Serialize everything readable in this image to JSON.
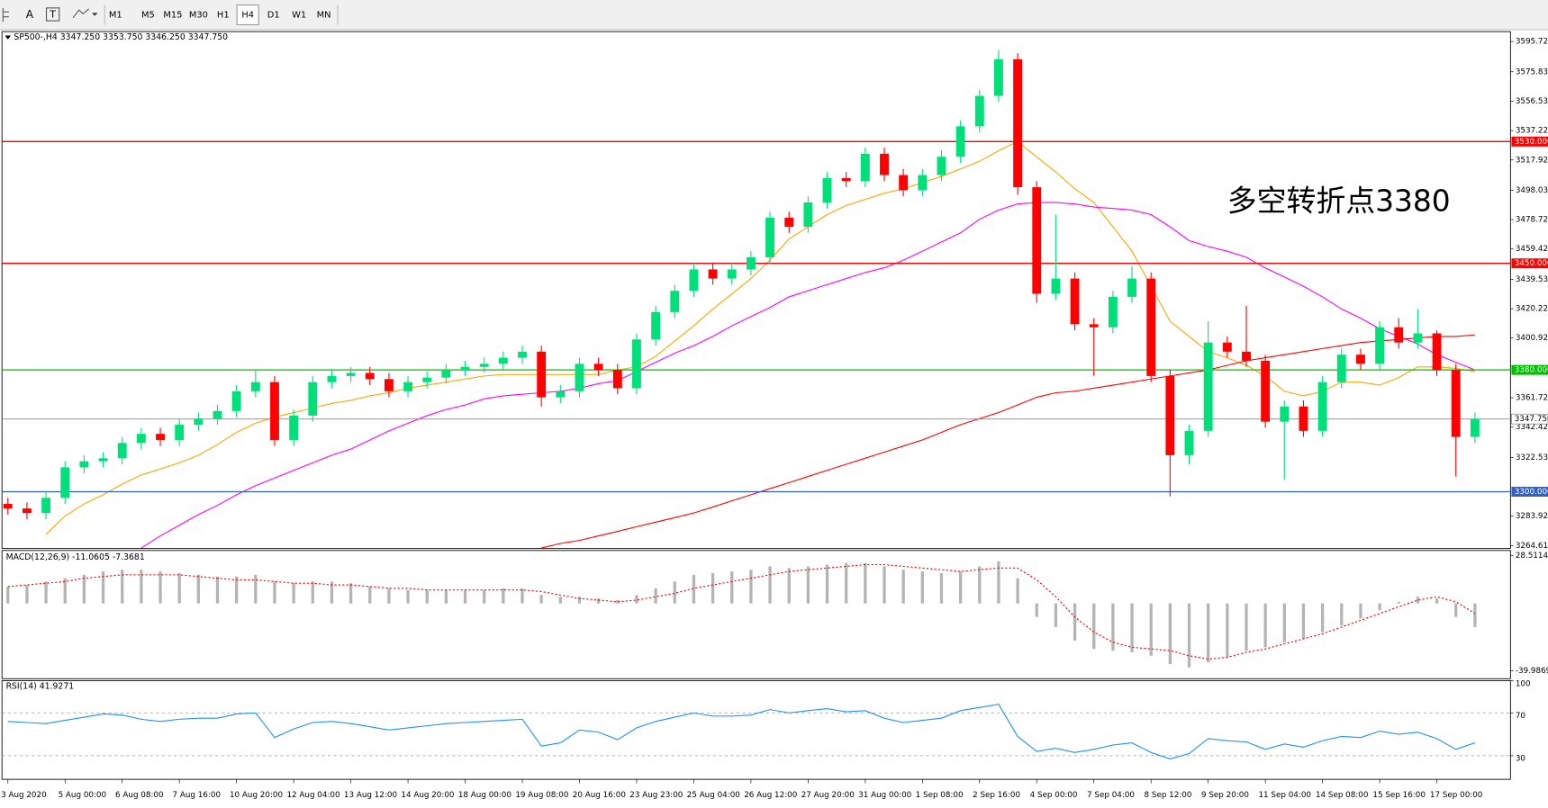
{
  "toolbar": {
    "tools": [
      "A"
    ],
    "timeframes": [
      "M1",
      "M5",
      "M15",
      "M30",
      "H1",
      "H4",
      "D1",
      "W1",
      "MN"
    ],
    "active_timeframe_index": 5
  },
  "chart_data": [
    {
      "type": "candlestick",
      "title": "SP500-,H4 3347.250 3353.750 3346.250 3347.750",
      "annotation": "多空转折点3380",
      "categories": [
        "3 Aug 2020",
        null,
        null,
        "5 Aug 00:00",
        null,
        null,
        "6 Aug 08:00",
        null,
        null,
        "7 Aug 16:00",
        null,
        null,
        "10 Aug 20:00",
        null,
        null,
        "12 Aug 04:00",
        null,
        null,
        "13 Aug 12:00",
        null,
        null,
        "14 Aug 20:00",
        null,
        null,
        "18 Aug 00:00",
        null,
        null,
        "19 Aug 08:00",
        null,
        null,
        "20 Aug 16:00",
        null,
        null,
        "23 Aug 23:00",
        null,
        null,
        "25 Aug 04:00",
        null,
        null,
        "26 Aug 12:00",
        null,
        null,
        "27 Aug 20:00",
        null,
        null,
        "31 Aug 00:00",
        null,
        null,
        "1 Sep 08:00",
        null,
        null,
        "2 Sep 16:00",
        null,
        null,
        "4 Sep 00:00",
        null,
        null,
        "7 Sep 04:00",
        null,
        null,
        "8 Sep 12:00",
        null,
        null,
        "9 Sep 20:00",
        null,
        null,
        "11 Sep 04:00",
        null,
        null,
        "14 Sep 08:00",
        null,
        null,
        "15 Sep 16:00",
        null,
        null,
        "17 Sep 00:00",
        null,
        null
      ],
      "open": [
        3292,
        3289,
        3286,
        3296,
        3316,
        3320,
        3322,
        3332,
        3338,
        3334,
        3344,
        3348,
        3353,
        3366,
        3372,
        3334,
        3350,
        3372,
        3376,
        3378,
        3374,
        3366,
        3372,
        3375,
        3380,
        3382,
        3384,
        3388,
        3392,
        3362,
        3366,
        3384,
        3380,
        3368,
        3400,
        3418,
        3432,
        3446,
        3440,
        3446,
        3454,
        3480,
        3474,
        3490,
        3506,
        3504,
        3522,
        3508,
        3498,
        3508,
        3520,
        3540,
        3560,
        3584,
        3500,
        3430,
        3440,
        3410,
        3408,
        3428,
        3440,
        3376,
        3324,
        3340,
        3398,
        3392,
        3386,
        3346,
        3356,
        3340,
        3372,
        3390,
        3384,
        3408,
        3398,
        3404,
        3380,
        3336
      ],
      "high": [
        3296,
        3293,
        3300,
        3320,
        3324,
        3326,
        3336,
        3342,
        3342,
        3348,
        3352,
        3357,
        3370,
        3380,
        3376,
        3354,
        3376,
        3380,
        3382,
        3382,
        3378,
        3376,
        3379,
        3384,
        3386,
        3388,
        3392,
        3396,
        3396,
        3370,
        3388,
        3388,
        3384,
        3404,
        3422,
        3436,
        3450,
        3450,
        3450,
        3458,
        3484,
        3484,
        3494,
        3510,
        3510,
        3526,
        3526,
        3512,
        3512,
        3524,
        3544,
        3564,
        3590,
        3588,
        3504,
        3482,
        3444,
        3414,
        3432,
        3448,
        3444,
        3380,
        3344,
        3412,
        3402,
        3422,
        3390,
        3360,
        3360,
        3376,
        3394,
        3394,
        3412,
        3414,
        3420,
        3406,
        3384,
        3352
      ],
      "low": [
        3285,
        3282,
        3282,
        3292,
        3312,
        3316,
        3318,
        3328,
        3330,
        3330,
        3340,
        3344,
        3349,
        3362,
        3330,
        3330,
        3346,
        3368,
        3372,
        3370,
        3362,
        3362,
        3368,
        3371,
        3376,
        3378,
        3380,
        3384,
        3356,
        3358,
        3362,
        3376,
        3364,
        3364,
        3396,
        3414,
        3428,
        3436,
        3436,
        3442,
        3450,
        3470,
        3470,
        3486,
        3500,
        3500,
        3504,
        3494,
        3494,
        3504,
        3516,
        3536,
        3556,
        3495,
        3424,
        3426,
        3406,
        3376,
        3404,
        3424,
        3372,
        3297,
        3318,
        3336,
        3388,
        3382,
        3342,
        3308,
        3336,
        3336,
        3368,
        3380,
        3380,
        3394,
        3394,
        3376,
        3310,
        3332
      ],
      "close": [
        3289,
        3286,
        3296,
        3316,
        3320,
        3322,
        3332,
        3338,
        3334,
        3344,
        3348,
        3353,
        3366,
        3372,
        3334,
        3350,
        3372,
        3376,
        3378,
        3374,
        3366,
        3372,
        3375,
        3380,
        3382,
        3384,
        3388,
        3392,
        3362,
        3366,
        3384,
        3380,
        3368,
        3400,
        3418,
        3432,
        3446,
        3440,
        3446,
        3454,
        3480,
        3474,
        3490,
        3506,
        3504,
        3522,
        3508,
        3498,
        3508,
        3520,
        3540,
        3560,
        3584,
        3500,
        3430,
        3440,
        3410,
        3408,
        3428,
        3440,
        3376,
        3324,
        3340,
        3398,
        3392,
        3386,
        3346,
        3356,
        3340,
        3372,
        3390,
        3384,
        3408,
        3398,
        3404,
        3380,
        3336,
        3347.75
      ],
      "up_color": "#00e07a",
      "down_color": "#ff0000",
      "lines": [
        {
          "color": "#ffa500",
          "values": [
            null,
            null,
            3272,
            3284,
            3292,
            3298,
            3305,
            3311,
            3315,
            3319,
            3324,
            3331,
            3339,
            3345,
            3349,
            3352,
            3355,
            3358,
            3360,
            3363,
            3365,
            3368,
            3370,
            3372,
            3374,
            3376,
            3377,
            3377,
            3377,
            3377,
            3377,
            3377,
            3380,
            3382,
            3389,
            3399,
            3409,
            3420,
            3430,
            3440,
            3452,
            3466,
            3474,
            3482,
            3488,
            3492,
            3496,
            3499,
            3503,
            3507,
            3512,
            3517,
            3524,
            3530,
            3520,
            3510,
            3499,
            3490,
            3474,
            3458,
            3435,
            3412,
            3402,
            3392,
            3388,
            3383,
            3376,
            3366,
            3363,
            3366,
            3372,
            3372,
            3370,
            3375,
            3382,
            3382,
            3381,
            3379
          ]
        },
        {
          "color": "#ff00ff",
          "values": [
            null,
            null,
            null,
            null,
            null,
            null,
            null,
            3263,
            3271,
            3278,
            3285,
            3291,
            3298,
            3304,
            3309,
            3314,
            3319,
            3324,
            3328,
            3334,
            3340,
            3345,
            3350,
            3354,
            3357,
            3361,
            3363,
            3364,
            3365,
            3366,
            3368,
            3371,
            3373,
            3379,
            3385,
            3391,
            3396,
            3402,
            3409,
            3415,
            3421,
            3428,
            3432,
            3436,
            3440,
            3444,
            3447,
            3452,
            3458,
            3464,
            3470,
            3479,
            3485,
            3489,
            3490,
            3490,
            3489,
            3487,
            3486,
            3485,
            3482,
            3474,
            3465,
            3461,
            3458,
            3454,
            3447,
            3441,
            3435,
            3428,
            3420,
            3414,
            3407,
            3402,
            3397,
            3390,
            3385,
            3380
          ]
        },
        {
          "color": "#ff0000",
          "values": [
            null,
            null,
            null,
            null,
            null,
            null,
            null,
            null,
            null,
            null,
            null,
            null,
            null,
            null,
            null,
            null,
            null,
            null,
            null,
            null,
            null,
            null,
            null,
            null,
            null,
            null,
            null,
            null,
            3263,
            3266,
            3268,
            3271,
            3274,
            3277,
            3280,
            3283,
            3286,
            3290,
            3294,
            3298,
            3302,
            3306,
            3310,
            3314,
            3318,
            3322,
            3326,
            3330,
            3334,
            3339,
            3344,
            3348,
            3352,
            3357,
            3362,
            3365,
            3366,
            3368,
            3370,
            3372,
            3374,
            3376,
            3378,
            3380,
            3383,
            3386,
            3388,
            3390,
            3392,
            3394,
            3396,
            3398,
            3399,
            3400,
            3401,
            3402,
            3402,
            3403
          ]
        }
      ],
      "levels": [
        {
          "value": 3530,
          "label": "3530.000",
          "color": "#ff0000"
        },
        {
          "value": 3450,
          "label": "3450.000",
          "color": "#ff0000"
        },
        {
          "value": 3380,
          "label": "3380.000",
          "color": "#00c000"
        },
        {
          "value": 3300,
          "label": "3300.000",
          "color": "#3060c8"
        }
      ],
      "current_price": {
        "value": 3347.75,
        "label": "3347.750"
      },
      "ylim": [
        3262.7,
        3602.2
      ],
      "yticks": [
        3595.725,
        3575.835,
        {
          "value": 3556.53,
          "label": "3556.530"
        },
        3537.225,
        {
          "value": 3517.92,
          "label": "3517.920"
        },
        {
          "value": 3498.03,
          "label": "3498.030"
        },
        {
          "value": 3478.72,
          "label": "3478.720"
        },
        {
          "value": 3459.42,
          "label": "3459.420"
        },
        {
          "value": 3439.53,
          "label": "3439.530"
        },
        3420.225,
        {
          "value": 3400.92,
          "label": "3400.920"
        },
        3361.725,
        {
          "value": 3342.42,
          "label": "3342.420"
        },
        {
          "value": 3322.53,
          "label": "3322.530"
        },
        {
          "value": 3283.92,
          "label": "3283.920"
        },
        3264.615
      ]
    },
    {
      "type": "macd",
      "title": "MACD(12,26,9) -11.0605 -7.3681",
      "histogram": [
        10,
        11,
        13,
        15,
        17,
        19,
        20,
        20,
        19,
        18,
        17,
        16,
        16,
        17,
        13,
        12,
        13,
        13,
        12,
        10,
        9,
        8,
        8,
        8,
        8,
        8,
        9,
        9,
        5,
        4,
        4,
        3,
        2,
        5,
        9,
        13,
        17,
        18,
        19,
        20,
        22,
        21,
        22,
        23,
        24,
        24,
        22,
        20,
        19,
        18,
        19,
        22,
        25,
        15,
        -8,
        -14,
        -22,
        -27,
        -28,
        -29,
        -31,
        -36,
        -38,
        -35,
        -32,
        -28,
        -26,
        -23,
        -21,
        -17,
        -13,
        -9,
        -4,
        1,
        4,
        3,
        -8,
        -14
      ],
      "signal": [
        10,
        11,
        12,
        13,
        15,
        16,
        17,
        17,
        17,
        17,
        16,
        15,
        14,
        14,
        13,
        12,
        12,
        11,
        11,
        10,
        9,
        9,
        8,
        8,
        8,
        8,
        8,
        8,
        7,
        5,
        3,
        2,
        1,
        2,
        4,
        6,
        9,
        11,
        13,
        15,
        17,
        19,
        20,
        21,
        22,
        23,
        23,
        22,
        21,
        20,
        19,
        20,
        21,
        21,
        14,
        4,
        -8,
        -17,
        -23,
        -26,
        -27,
        -28,
        -31,
        -33,
        -32,
        -29,
        -27,
        -24,
        -21,
        -18,
        -14,
        -10,
        -6,
        -2,
        2,
        4,
        1,
        -6
      ],
      "histogram_color": "#b4b4b4",
      "signal_color": "#ff0000",
      "ylim": [
        -44.67,
        31.44
      ],
      "yticks": [
        28.5114,
        -39.9869
      ]
    },
    {
      "type": "rsi",
      "title": "RSI(14) 41.9271",
      "values": [
        62,
        61,
        60,
        63,
        66,
        69,
        68,
        64,
        62,
        64,
        65,
        65,
        69,
        70,
        47,
        55,
        61,
        62,
        60,
        57,
        54,
        56,
        58,
        60,
        61,
        62,
        63,
        64,
        39,
        42,
        54,
        52,
        45,
        56,
        62,
        66,
        70,
        67,
        67,
        68,
        73,
        70,
        72,
        74,
        71,
        72,
        65,
        61,
        63,
        65,
        72,
        75,
        78,
        48,
        34,
        37,
        33,
        36,
        40,
        42,
        33,
        27,
        32,
        46,
        44,
        43,
        36,
        41,
        38,
        44,
        48,
        47,
        53,
        50,
        52,
        46,
        36,
        42
      ],
      "color": "#1e90ff",
      "ylim": [
        8,
        100
      ],
      "yticks": [
        100,
        70,
        30
      ],
      "levels": [
        70,
        30
      ]
    }
  ]
}
